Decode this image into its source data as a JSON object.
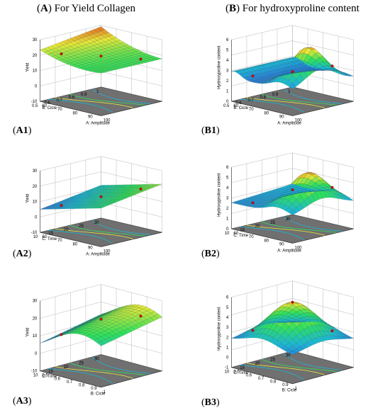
{
  "headers": {
    "left": {
      "letter": "A",
      "text": "For Yield Collagen"
    },
    "right": {
      "letter": "B",
      "text": "For hydroxyproline content"
    }
  },
  "chart_data": [
    {
      "id": "A1",
      "label": "A1",
      "type": "surface3d",
      "zlabel": "Yield",
      "zticks": [
        "30",
        "20",
        "10",
        "0",
        "-10"
      ],
      "xlabel": "A: Amplitude",
      "xticks": [
        "60",
        "70",
        "80",
        "90",
        "100"
      ],
      "ylabel": "B: Cicle",
      "yticks": [
        "0.5",
        "0.6",
        "0.7",
        "0.8",
        "0.9",
        "1"
      ],
      "zlim": [
        -10,
        30
      ],
      "colors": {
        "low": "#3b3bdc",
        "mid1": "#18b8d8",
        "mid2": "#2ee850",
        "high": "#f0e020",
        "top": "#e0401a"
      }
    },
    {
      "id": "B1",
      "label": "B1",
      "type": "surface3d",
      "zlabel": "Hydroxyproline content",
      "zticks": [
        "6",
        "5",
        "4",
        "3",
        "2",
        "1",
        "0"
      ],
      "xlabel": "A: Amplitude",
      "xticks": [
        "60",
        "70",
        "80",
        "90",
        "100"
      ],
      "ylabel": "B: Cicle",
      "yticks": [
        "0.5",
        "0.6",
        "0.7",
        "0.8",
        "0.9",
        "1"
      ],
      "zlim": [
        0,
        6
      ]
    },
    {
      "id": "A2",
      "label": "A2",
      "type": "surface3d",
      "zlabel": "Yield",
      "zticks": [
        "30",
        "20",
        "10",
        "0",
        "-10"
      ],
      "xlabel": "A: Amplitude",
      "xticks": [
        "60",
        "70",
        "80",
        "90",
        "100"
      ],
      "ylabel": "C: Time",
      "yticks": [
        "10",
        "15",
        "20",
        "25",
        "30"
      ],
      "zlim": [
        -10,
        30
      ]
    },
    {
      "id": "B2",
      "label": "B2",
      "type": "surface3d",
      "zlabel": "Hydroxyproline content",
      "zticks": [
        "6",
        "5",
        "4",
        "3",
        "2",
        "1",
        "0"
      ],
      "xlabel": "A: Amplitude",
      "xticks": [
        "60",
        "70",
        "80",
        "90",
        "100"
      ],
      "ylabel": "C: Time",
      "yticks": [
        "10",
        "15",
        "20",
        "25",
        "30"
      ],
      "zlim": [
        0,
        6
      ]
    },
    {
      "id": "A3",
      "label": "A3",
      "type": "surface3d",
      "zlabel": "Yield",
      "zticks": [
        "30",
        "20",
        "10",
        "0",
        "-10"
      ],
      "xlabel": "B: Cicle",
      "xticks": [
        "0.5",
        "0.6",
        "0.7",
        "0.8",
        "0.9",
        "1"
      ],
      "ylabel": "C: Time",
      "yticks": [
        "10",
        "15",
        "20",
        "25",
        "30"
      ],
      "zlim": [
        -10,
        30
      ]
    },
    {
      "id": "B3",
      "label": "B3",
      "type": "surface3d",
      "zlabel": "Hydroxyproline content",
      "zticks": [
        "6",
        "5",
        "4",
        "3",
        "2",
        "1",
        "0",
        "-1"
      ],
      "xlabel": "B: Cicle",
      "xticks": [
        "0.5",
        "0.6",
        "0.7",
        "0.8",
        "0.9",
        "1"
      ],
      "ylabel": "C: Time",
      "yticks": [
        "10",
        "15",
        "20",
        "25",
        "30"
      ],
      "zlim": [
        -1,
        6
      ]
    }
  ]
}
